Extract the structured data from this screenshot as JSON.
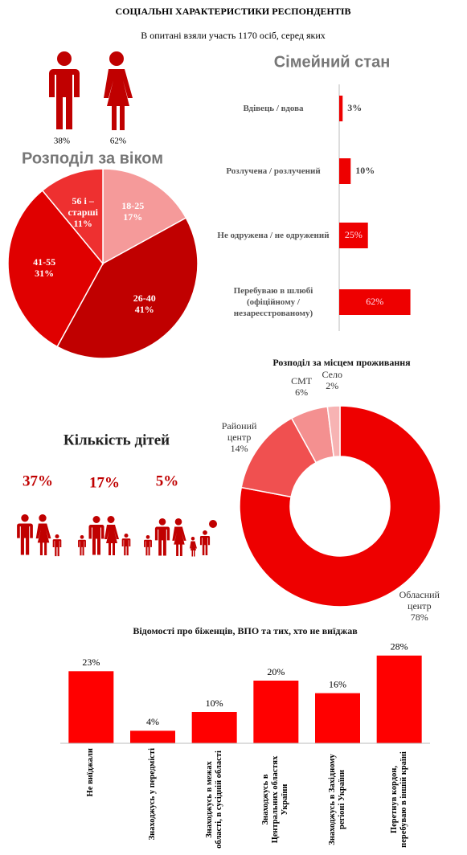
{
  "header": {
    "title": "СОЦІАЛЬНІ ХАРАКТЕРИСТИКИ РЕСПОНДЕНТІВ",
    "subtitle": "В опитані взяли участь 1170 осіб, серед яких"
  },
  "gender": {
    "values": [
      38,
      62
    ],
    "value_labels": [
      "38%",
      "62%"
    ]
  },
  "children": {
    "title": "Кількість дітей",
    "values": [
      37,
      17,
      5
    ],
    "value_labels": [
      "37%",
      "17%",
      "5%"
    ]
  },
  "chart_data": [
    {
      "type": "pie",
      "title": "Розподіл за віком",
      "categories": [
        "18-25",
        "26-40",
        "41-55",
        "56 і – старші"
      ],
      "values": [
        17,
        41,
        31,
        11
      ],
      "value_labels": [
        "17%",
        "41%",
        "31%",
        "11%"
      ],
      "colors": [
        "#f59a9a",
        "#c00000",
        "#e00000",
        "#ee3030"
      ]
    },
    {
      "type": "bar",
      "orientation": "horizontal",
      "title": "Сімейний стан",
      "categories": [
        "Вдівець / вдова",
        "Розлучена / розлучений",
        "Не одружена / не одружений",
        "Перебуваю в шлюбі (офіційному / незареєстрованому)"
      ],
      "values": [
        3,
        10,
        25,
        62
      ],
      "value_labels": [
        "3%",
        "10%",
        "25%",
        "62%"
      ],
      "color": "#ee0000",
      "xlim": [
        0,
        70
      ]
    },
    {
      "type": "donut",
      "title": "Розподіл за місцем проживання",
      "categories": [
        "Обласний центр",
        "Районий центр",
        "СМТ",
        "Село"
      ],
      "values": [
        78,
        14,
        6,
        2
      ],
      "value_labels": [
        "78%",
        "14%",
        "6%",
        "2%"
      ],
      "colors": [
        "#ee0000",
        "#f05050",
        "#f49090",
        "#f7b3b3"
      ]
    },
    {
      "type": "bar",
      "title": "Відомості про біженців, ВПО та тих, хто не виїджав",
      "categories": [
        "Не виїджали",
        "Знаходжусь у передмісті",
        "Знаходжусь в межах області, в сусідній області",
        "Знаходжусь в Центральних областях України",
        "Знаходжусь в Західному регіоні України",
        "Перетнув кордон, перебуваю в іншій країні"
      ],
      "values": [
        23,
        4,
        10,
        20,
        16,
        28
      ],
      "value_labels": [
        "23%",
        "4%",
        "10%",
        "20%",
        "16%",
        "28%"
      ],
      "color": "#ff0000",
      "ylim": [
        0,
        30
      ]
    }
  ]
}
